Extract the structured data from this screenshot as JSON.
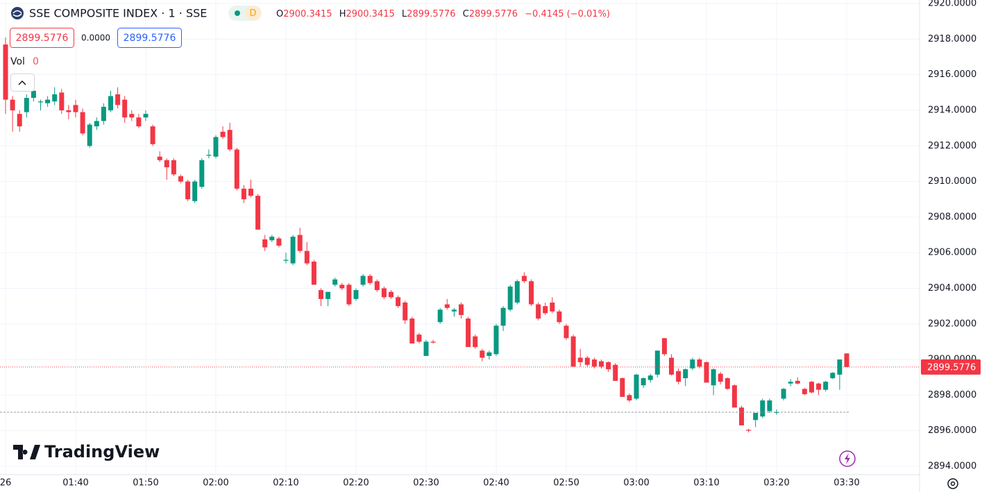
{
  "header": {
    "title": "SSE COMPOSITE INDEX · 1 · SSE",
    "badge": "D",
    "o_label": "O",
    "h_label": "H",
    "l_label": "L",
    "c_label": "C",
    "change": "−0.4145 (−0.01%)",
    "spread": "0.0000",
    "volume_label": "Vol",
    "volume_value": "0"
  },
  "branding": "TradingView",
  "chart_data": {
    "type": "candlestick",
    "up_color": "#089981",
    "down_color": "#f23645",
    "grid": true,
    "ylim": [
      2893.53,
      2920.2
    ],
    "yticks": [
      {
        "value": 2894,
        "label": "2894.0000"
      },
      {
        "value": 2896,
        "label": "2896.0000"
      },
      {
        "value": 2898,
        "label": "2898.0000"
      },
      {
        "value": 2900,
        "label": "2900.0000"
      },
      {
        "value": 2902,
        "label": "2902.0000"
      },
      {
        "value": 2904,
        "label": "2904.0000"
      },
      {
        "value": 2906,
        "label": "2906.0000"
      },
      {
        "value": 2908,
        "label": "2908.0000"
      },
      {
        "value": 2910,
        "label": "2910.0000"
      },
      {
        "value": 2912,
        "label": "2912.0000"
      },
      {
        "value": 2914,
        "label": "2914.0000"
      },
      {
        "value": 2916,
        "label": "2916.0000"
      },
      {
        "value": 2918,
        "label": "2918.0000"
      },
      {
        "value": 2920,
        "label": "2920.0000"
      }
    ],
    "reference_line": 2897.04,
    "categories": [
      "26",
      null,
      null,
      null,
      null,
      null,
      null,
      null,
      null,
      null,
      "01:40",
      null,
      null,
      null,
      null,
      null,
      null,
      null,
      null,
      null,
      "01:50",
      null,
      null,
      null,
      null,
      null,
      null,
      null,
      null,
      null,
      "02:00",
      null,
      null,
      null,
      null,
      null,
      null,
      null,
      null,
      null,
      "02:10",
      null,
      null,
      null,
      null,
      null,
      null,
      null,
      null,
      null,
      "02:20",
      null,
      null,
      null,
      null,
      null,
      null,
      null,
      null,
      null,
      "02:30",
      null,
      null,
      null,
      null,
      null,
      null,
      null,
      null,
      null,
      "02:40",
      null,
      null,
      null,
      null,
      null,
      null,
      null,
      null,
      null,
      "02:50",
      null,
      null,
      null,
      null,
      null,
      null,
      null,
      null,
      null,
      "03:00",
      null,
      null,
      null,
      null,
      null,
      null,
      null,
      null,
      null,
      "03:10",
      null,
      null,
      null,
      null,
      null,
      null,
      null,
      null,
      null,
      "03:20",
      null,
      null,
      null,
      null,
      null,
      null,
      null,
      null,
      null,
      "03:30"
    ],
    "ohlc": [
      [
        2917.7,
        2918.1,
        2913.8,
        2914.6
      ],
      [
        2914.6,
        2914.8,
        2912.8,
        2914.0
      ],
      [
        2913.8,
        2914.0,
        2912.8,
        2913.1
      ],
      [
        2913.9,
        2914.9,
        2913.6,
        2914.7
      ],
      [
        2914.7,
        2915.5,
        2914.5,
        2915.1
      ],
      [
        2914.45,
        2914.6,
        2914.0,
        2914.5
      ],
      [
        2914.4,
        2914.8,
        2914.2,
        2914.6
      ],
      [
        2914.5,
        2915.3,
        2914.3,
        2914.9
      ],
      [
        2915.0,
        2915.2,
        2913.8,
        2914.0
      ],
      [
        2914.0,
        2914.3,
        2913.5,
        2913.9
      ],
      [
        2914.3,
        2914.6,
        2913.6,
        2913.9
      ],
      [
        2913.9,
        2914.1,
        2912.6,
        2912.7
      ],
      [
        2912.0,
        2913.3,
        2911.9,
        2913.2
      ],
      [
        2913.1,
        2913.6,
        2912.9,
        2913.4
      ],
      [
        2913.4,
        2914.4,
        2913.2,
        2914.2
      ],
      [
        2914.0,
        2915.1,
        2913.9,
        2914.8
      ],
      [
        2914.9,
        2915.3,
        2914.1,
        2914.3
      ],
      [
        2914.6,
        2914.8,
        2913.3,
        2913.6
      ],
      [
        2913.8,
        2914.0,
        2913.4,
        2913.6
      ],
      [
        2913.6,
        2913.8,
        2913.0,
        2913.1
      ],
      [
        2913.6,
        2914.0,
        2913.4,
        2913.8
      ],
      [
        2913.1,
        2913.2,
        2912.0,
        2912.1
      ],
      [
        2911.4,
        2911.7,
        2911.1,
        2911.2
      ],
      [
        2911.2,
        2911.3,
        2910.1,
        2910.8
      ],
      [
        2911.2,
        2911.3,
        2910.3,
        2910.4
      ],
      [
        2910.3,
        2910.4,
        2909.9,
        2910.0
      ],
      [
        2910.0,
        2910.1,
        2908.9,
        2909.0
      ],
      [
        2908.9,
        2910.1,
        2908.8,
        2910.0
      ],
      [
        2909.7,
        2911.3,
        2909.6,
        2911.2
      ],
      [
        2911.45,
        2911.8,
        2911.3,
        2911.5
      ],
      [
        2911.4,
        2912.6,
        2911.3,
        2912.5
      ],
      [
        2912.8,
        2913.1,
        2912.4,
        2912.5
      ],
      [
        2912.9,
        2913.3,
        2911.7,
        2911.8
      ],
      [
        2911.8,
        2911.9,
        2909.5,
        2909.6
      ],
      [
        2909.6,
        2909.8,
        2908.8,
        2909.0
      ],
      [
        2909.6,
        2910.1,
        2909.1,
        2909.2
      ],
      [
        2909.2,
        2909.3,
        2907.3,
        2907.3
      ],
      [
        2906.75,
        2907.0,
        2906.1,
        2906.3
      ],
      [
        2906.7,
        2907.0,
        2906.6,
        2906.9
      ],
      [
        2906.8,
        2906.9,
        2906.3,
        2906.4
      ],
      [
        2905.55,
        2906.0,
        2905.4,
        2905.6
      ],
      [
        2905.4,
        2907.0,
        2905.3,
        2906.9
      ],
      [
        2907.0,
        2907.4,
        2906.0,
        2906.1
      ],
      [
        2906.1,
        2906.6,
        2905.3,
        2905.4
      ],
      [
        2905.5,
        2905.6,
        2904.2,
        2904.2
      ],
      [
        2903.9,
        2904.0,
        2903.0,
        2903.4
      ],
      [
        2903.4,
        2903.8,
        2903.0,
        2903.8
      ],
      [
        2904.2,
        2904.6,
        2904.1,
        2904.5
      ],
      [
        2904.2,
        2904.3,
        2903.9,
        2904.0
      ],
      [
        2904.2,
        2904.3,
        2903.0,
        2903.1
      ],
      [
        2903.4,
        2904.0,
        2903.3,
        2903.9
      ],
      [
        2904.2,
        2904.8,
        2904.1,
        2904.7
      ],
      [
        2904.7,
        2904.8,
        2904.2,
        2904.3
      ],
      [
        2904.4,
        2904.5,
        2903.8,
        2903.9
      ],
      [
        2904.0,
        2904.1,
        2903.4,
        2903.5
      ],
      [
        2903.8,
        2903.9,
        2903.4,
        2903.5
      ],
      [
        2903.5,
        2903.6,
        2902.9,
        2903.0
      ],
      [
        2903.2,
        2903.3,
        2902.0,
        2902.2
      ],
      [
        2902.3,
        2902.4,
        2900.9,
        2900.9
      ],
      [
        2901.4,
        2901.5,
        2900.9,
        2901.0
      ],
      [
        2900.2,
        2901.1,
        2900.2,
        2901.0
      ],
      [
        2901.0,
        2901.1,
        2900.9,
        2900.95
      ],
      [
        2902.1,
        2902.9,
        2902.0,
        2902.8
      ],
      [
        2903.1,
        2903.4,
        2902.8,
        2902.9
      ],
      [
        2902.7,
        2902.9,
        2902.4,
        2902.8
      ],
      [
        2903.1,
        2903.2,
        2902.3,
        2902.5
      ],
      [
        2902.3,
        2902.4,
        2900.7,
        2900.7
      ],
      [
        2901.3,
        2901.4,
        2900.6,
        2900.7
      ],
      [
        2900.5,
        2900.6,
        2899.9,
        2900.1
      ],
      [
        2900.2,
        2900.5,
        2900.0,
        2900.4
      ],
      [
        2900.3,
        2902.0,
        2900.2,
        2901.9
      ],
      [
        2901.9,
        2903.0,
        2901.6,
        2902.9
      ],
      [
        2902.8,
        2904.2,
        2902.7,
        2904.1
      ],
      [
        2903.2,
        2904.5,
        2903.1,
        2904.4
      ],
      [
        2904.7,
        2904.9,
        2904.3,
        2904.4
      ],
      [
        2904.4,
        2904.5,
        2903.0,
        2903.1
      ],
      [
        2903.1,
        2903.2,
        2902.2,
        2902.3
      ],
      [
        2903.0,
        2903.2,
        2902.5,
        2902.6
      ],
      [
        2903.2,
        2903.5,
        2902.6,
        2902.7
      ],
      [
        2902.7,
        2902.8,
        2902.0,
        2902.1
      ],
      [
        2901.9,
        2902.0,
        2901.1,
        2901.2
      ],
      [
        2901.3,
        2901.4,
        2899.6,
        2899.6
      ],
      [
        2900.1,
        2900.6,
        2899.6,
        2899.85
      ],
      [
        2900.1,
        2900.2,
        2899.6,
        2899.7
      ],
      [
        2900.0,
        2900.1,
        2899.5,
        2899.6
      ],
      [
        2899.9,
        2900.0,
        2899.5,
        2899.6
      ],
      [
        2899.85,
        2899.9,
        2899.3,
        2899.45
      ],
      [
        2899.7,
        2899.8,
        2898.8,
        2898.8
      ],
      [
        2898.95,
        2899.0,
        2897.9,
        2897.9
      ],
      [
        2898.0,
        2898.1,
        2897.6,
        2897.7
      ],
      [
        2897.8,
        2899.2,
        2897.7,
        2899.15
      ],
      [
        2898.55,
        2899.0,
        2898.4,
        2898.95
      ],
      [
        2898.85,
        2899.2,
        2898.7,
        2899.1
      ],
      [
        2899.15,
        2900.5,
        2899.0,
        2900.5
      ],
      [
        2901.2,
        2901.2,
        2900.2,
        2900.3
      ],
      [
        2900.1,
        2900.3,
        2899.1,
        2899.15
      ],
      [
        2899.35,
        2899.5,
        2898.6,
        2898.75
      ],
      [
        2898.95,
        2899.5,
        2898.5,
        2899.45
      ],
      [
        2899.5,
        2900.1,
        2899.4,
        2900.0
      ],
      [
        2900.0,
        2900.1,
        2899.5,
        2899.6
      ],
      [
        2899.85,
        2899.9,
        2898.7,
        2898.7
      ],
      [
        2898.55,
        2899.5,
        2898.0,
        2899.45
      ],
      [
        2899.2,
        2899.3,
        2898.6,
        2898.75
      ],
      [
        2898.95,
        2899.0,
        2898.3,
        2898.35
      ],
      [
        2898.55,
        2898.6,
        2897.3,
        2897.3
      ],
      [
        2897.3,
        2897.4,
        2896.3,
        2896.3
      ],
      [
        2896.05,
        2896.1,
        2895.9,
        2896.0
      ],
      [
        2896.6,
        2897.0,
        2896.2,
        2897.0
      ],
      [
        2896.8,
        2897.8,
        2896.7,
        2897.7
      ],
      [
        2897.1,
        2897.8,
        2897.0,
        2897.7
      ],
      [
        2897.0,
        2897.2,
        2896.9,
        2897.05
      ],
      [
        2897.8,
        2898.4,
        2897.7,
        2898.35
      ],
      [
        2898.65,
        2898.9,
        2898.5,
        2898.75
      ],
      [
        2898.8,
        2899.0,
        2898.6,
        2898.65
      ],
      [
        2898.35,
        2898.4,
        2898.0,
        2898.05
      ],
      [
        2898.75,
        2898.8,
        2898.1,
        2898.15
      ],
      [
        2898.65,
        2898.7,
        2898.0,
        2898.3
      ],
      [
        2898.3,
        2898.8,
        2898.2,
        2898.75
      ],
      [
        2898.95,
        2899.3,
        2898.9,
        2899.25
      ],
      [
        2899.15,
        2900.0,
        2898.3,
        2900.0
      ],
      [
        2900.3415,
        2900.3415,
        2899.5776,
        2899.5776
      ]
    ]
  }
}
